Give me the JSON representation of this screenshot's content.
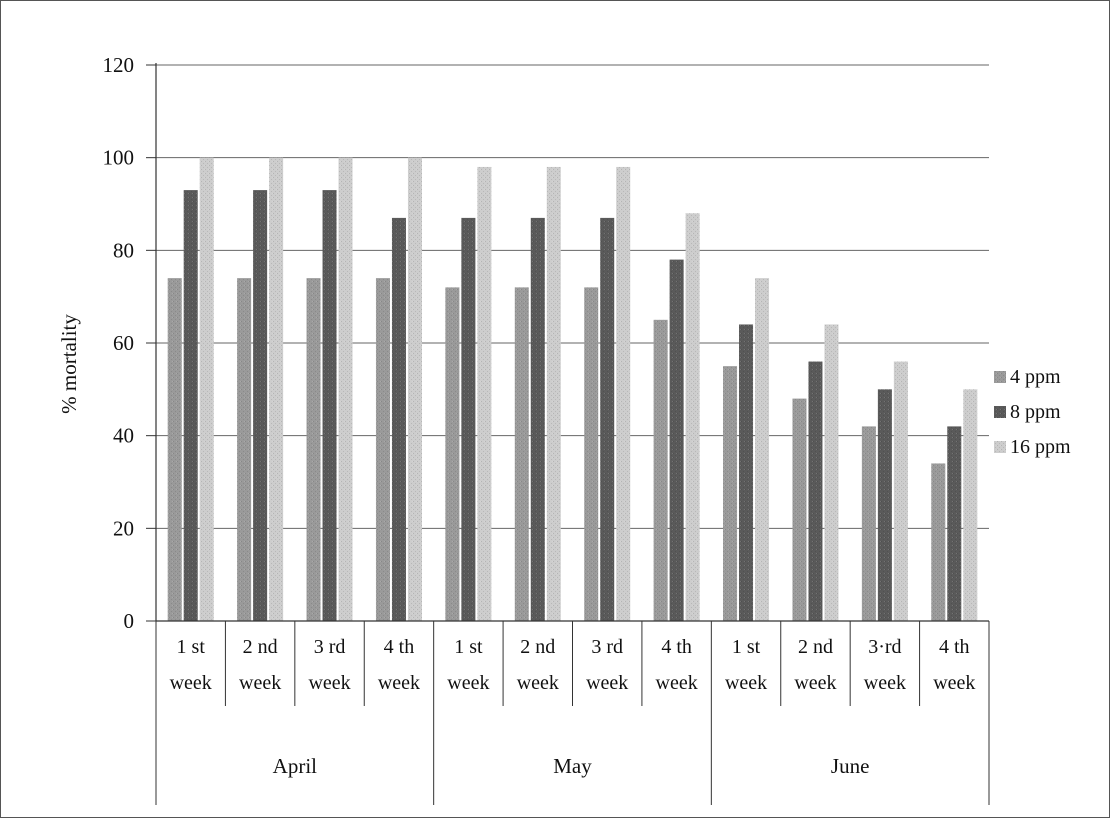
{
  "chart_data": {
    "type": "bar",
    "ylabel": "% mortality",
    "ylim": [
      0,
      120
    ],
    "yticks": [
      0,
      20,
      40,
      60,
      80,
      100,
      120
    ],
    "grid": true,
    "legend_position": "right",
    "groups": [
      {
        "label": "April",
        "span": 4
      },
      {
        "label": "May",
        "span": 4
      },
      {
        "label": "June",
        "span": 4
      }
    ],
    "categories": [
      [
        "1 st",
        "week"
      ],
      [
        "2 nd",
        "week"
      ],
      [
        "3 rd",
        "week"
      ],
      [
        "4 th",
        "week"
      ],
      [
        "1 st",
        "week"
      ],
      [
        "2 nd",
        "week"
      ],
      [
        "3 rd",
        "week"
      ],
      [
        "4 th",
        "week"
      ],
      [
        "1 st",
        "week"
      ],
      [
        "2 nd",
        "week"
      ],
      [
        "3·rd",
        "week"
      ],
      [
        "4 th",
        "week"
      ]
    ],
    "series": [
      {
        "name": "4 ppm",
        "color": "#9a9a9a",
        "values": [
          74,
          74,
          74,
          74,
          72,
          72,
          72,
          65,
          55,
          48,
          42,
          34
        ]
      },
      {
        "name": "8 ppm",
        "color": "#5a5a5a",
        "values": [
          93,
          93,
          93,
          87,
          87,
          87,
          87,
          78,
          64,
          56,
          50,
          42
        ]
      },
      {
        "name": "16 ppm",
        "color": "#cdcdcd",
        "values": [
          100,
          100,
          100,
          100,
          98,
          98,
          98,
          88,
          74,
          64,
          56,
          50
        ]
      }
    ]
  }
}
